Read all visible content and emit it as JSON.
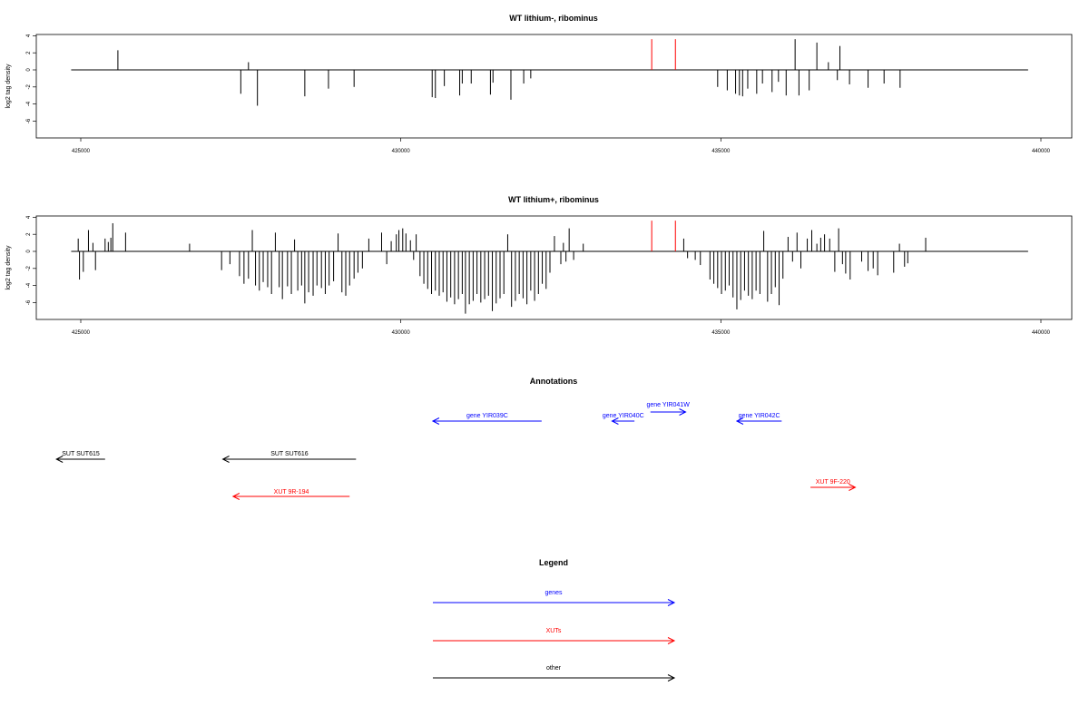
{
  "chart_data": [
    {
      "type": "bar",
      "title": "WT lithium-, ribominus",
      "ylabel": "log2 tag density",
      "xlabel": "",
      "xlim": [
        424800,
        440050
      ],
      "ylim": [
        -7.5,
        4
      ],
      "x_ticks": [
        425000,
        430000,
        435000,
        440000
      ],
      "y_ticks": [
        4,
        2,
        0,
        -2,
        -4,
        -6
      ],
      "grid": false,
      "highlight": {
        "color": "#ff0000",
        "x": [
          433920,
          434290
        ]
      },
      "values": [
        [
          425580,
          2.3
        ],
        [
          427500,
          -2.8
        ],
        [
          427620,
          0.9
        ],
        [
          427760,
          -4.2
        ],
        [
          428500,
          -3.1
        ],
        [
          428870,
          -2.2
        ],
        [
          429270,
          -2.0
        ],
        [
          430490,
          -3.2
        ],
        [
          430540,
          -3.3
        ],
        [
          430680,
          -1.9
        ],
        [
          430920,
          -3.0
        ],
        [
          430960,
          -1.6
        ],
        [
          431100,
          -1.6
        ],
        [
          431400,
          -2.9
        ],
        [
          431440,
          -1.5
        ],
        [
          431720,
          -3.5
        ],
        [
          431920,
          -1.6
        ],
        [
          432030,
          -1.0
        ],
        [
          434950,
          -2.0
        ],
        [
          435100,
          -2.4
        ],
        [
          435230,
          -2.8
        ],
        [
          435290,
          -3.0
        ],
        [
          435340,
          -3.1
        ],
        [
          435420,
          -2.2
        ],
        [
          435560,
          -2.8
        ],
        [
          435650,
          -1.6
        ],
        [
          435800,
          -2.6
        ],
        [
          435900,
          -1.4
        ],
        [
          436020,
          -3.0
        ],
        [
          436160,
          3.6
        ],
        [
          436220,
          -3.0
        ],
        [
          436380,
          -2.4
        ],
        [
          436500,
          3.2
        ],
        [
          436680,
          0.9
        ],
        [
          436820,
          -1.2
        ],
        [
          436860,
          2.8
        ],
        [
          437010,
          -1.7
        ],
        [
          437300,
          -2.1
        ],
        [
          437550,
          -1.6
        ],
        [
          437800,
          -2.1
        ]
      ]
    },
    {
      "type": "bar",
      "title": "WT lithium+, ribominus",
      "ylabel": "log2 tag density",
      "xlabel": "",
      "xlim": [
        424800,
        440050
      ],
      "ylim": [
        -7.5,
        4
      ],
      "x_ticks": [
        425000,
        430000,
        435000,
        440000
      ],
      "y_ticks": [
        4,
        2,
        0,
        -2,
        -4,
        -6
      ],
      "grid": false,
      "highlight": {
        "color": "#ff0000",
        "x": [
          433920,
          434290
        ]
      },
      "values": [
        [
          424960,
          1.5
        ],
        [
          424980,
          -3.3
        ],
        [
          425040,
          -2.4
        ],
        [
          425120,
          2.5
        ],
        [
          425190,
          1.0
        ],
        [
          425230,
          -2.2
        ],
        [
          425380,
          1.5
        ],
        [
          425430,
          1.1
        ],
        [
          425470,
          1.6
        ],
        [
          425500,
          3.3
        ],
        [
          425700,
          2.2
        ],
        [
          426700,
          0.9
        ],
        [
          427200,
          -2.2
        ],
        [
          427330,
          -1.5
        ],
        [
          427480,
          -2.9
        ],
        [
          427550,
          -3.8
        ],
        [
          427620,
          -3.2
        ],
        [
          427680,
          2.5
        ],
        [
          427730,
          -4.0
        ],
        [
          427790,
          -4.6
        ],
        [
          427850,
          -3.6
        ],
        [
          427920,
          -4.2
        ],
        [
          427980,
          -5.0
        ],
        [
          428040,
          2.2
        ],
        [
          428100,
          -4.2
        ],
        [
          428150,
          -5.6
        ],
        [
          428230,
          -4.1
        ],
        [
          428290,
          -5.0
        ],
        [
          428340,
          1.4
        ],
        [
          428390,
          -4.6
        ],
        [
          428450,
          -4.0
        ],
        [
          428500,
          -6.1
        ],
        [
          428560,
          -4.8
        ],
        [
          428630,
          -5.2
        ],
        [
          428690,
          -4.0
        ],
        [
          428760,
          -4.3
        ],
        [
          428820,
          -5.0
        ],
        [
          428880,
          -4.0
        ],
        [
          428950,
          -3.5
        ],
        [
          429020,
          2.1
        ],
        [
          429080,
          -4.8
        ],
        [
          429140,
          -5.2
        ],
        [
          429200,
          -4.0
        ],
        [
          429270,
          -3.2
        ],
        [
          429330,
          -2.5
        ],
        [
          429400,
          -2.0
        ],
        [
          429500,
          1.5
        ],
        [
          429700,
          2.2
        ],
        [
          429780,
          -1.5
        ],
        [
          429850,
          1.2
        ],
        [
          429930,
          2.0
        ],
        [
          429970,
          2.5
        ],
        [
          430030,
          2.7
        ],
        [
          430080,
          2.1
        ],
        [
          430150,
          1.3
        ],
        [
          430200,
          -1.0
        ],
        [
          430240,
          2.0
        ],
        [
          430300,
          -2.9
        ],
        [
          430360,
          -3.8
        ],
        [
          430420,
          -4.4
        ],
        [
          430480,
          -5.0
        ],
        [
          430540,
          -4.6
        ],
        [
          430600,
          -5.2
        ],
        [
          430660,
          -4.8
        ],
        [
          430720,
          -5.9
        ],
        [
          430780,
          -5.4
        ],
        [
          430840,
          -6.2
        ],
        [
          430900,
          -5.6
        ],
        [
          430960,
          -5.0
        ],
        [
          431010,
          -7.3
        ],
        [
          431070,
          -6.2
        ],
        [
          431130,
          -5.8
        ],
        [
          431190,
          -5.0
        ],
        [
          431250,
          -6.0
        ],
        [
          431310,
          -5.6
        ],
        [
          431370,
          -5.2
        ],
        [
          431430,
          -7.0
        ],
        [
          431490,
          -6.1
        ],
        [
          431550,
          -5.5
        ],
        [
          431610,
          -5.0
        ],
        [
          431670,
          2.0
        ],
        [
          431730,
          -6.5
        ],
        [
          431790,
          -5.8
        ],
        [
          431850,
          -5.0
        ],
        [
          431910,
          -5.5
        ],
        [
          431970,
          -6.2
        ],
        [
          432030,
          -4.6
        ],
        [
          432090,
          -5.8
        ],
        [
          432150,
          -5.0
        ],
        [
          432210,
          -3.8
        ],
        [
          432270,
          -4.4
        ],
        [
          432330,
          -2.5
        ],
        [
          432400,
          1.8
        ],
        [
          432500,
          -1.5
        ],
        [
          432540,
          1.0
        ],
        [
          432580,
          -1.2
        ],
        [
          432630,
          2.7
        ],
        [
          432700,
          -1.0
        ],
        [
          432850,
          0.9
        ],
        [
          434420,
          1.5
        ],
        [
          434480,
          -0.8
        ],
        [
          434600,
          -1.0
        ],
        [
          434680,
          -1.6
        ],
        [
          434830,
          -3.3
        ],
        [
          434890,
          -3.8
        ],
        [
          434950,
          -4.3
        ],
        [
          435010,
          -5.0
        ],
        [
          435070,
          -4.6
        ],
        [
          435130,
          -4.0
        ],
        [
          435190,
          -5.4
        ],
        [
          435250,
          -6.8
        ],
        [
          435310,
          -5.7
        ],
        [
          435370,
          -4.6
        ],
        [
          435430,
          -5.2
        ],
        [
          435490,
          -5.6
        ],
        [
          435550,
          -4.6
        ],
        [
          435610,
          -5.0
        ],
        [
          435670,
          2.4
        ],
        [
          435730,
          -5.9
        ],
        [
          435790,
          -5.0
        ],
        [
          435850,
          -4.2
        ],
        [
          435910,
          -6.3
        ],
        [
          435970,
          -3.2
        ],
        [
          436050,
          1.7
        ],
        [
          436120,
          -1.2
        ],
        [
          436190,
          2.2
        ],
        [
          436250,
          -2.0
        ],
        [
          436350,
          1.5
        ],
        [
          436420,
          2.5
        ],
        [
          436500,
          0.9
        ],
        [
          436560,
          1.6
        ],
        [
          436620,
          2.0
        ],
        [
          436700,
          1.5
        ],
        [
          436780,
          -2.4
        ],
        [
          436840,
          2.7
        ],
        [
          436900,
          -1.5
        ],
        [
          436950,
          -2.6
        ],
        [
          437020,
          -3.3
        ],
        [
          437200,
          -1.2
        ],
        [
          437300,
          -2.3
        ],
        [
          437380,
          -2.0
        ],
        [
          437450,
          -2.8
        ],
        [
          437700,
          -2.5
        ],
        [
          437790,
          0.9
        ],
        [
          437870,
          -1.8
        ],
        [
          437920,
          -1.4
        ],
        [
          438200,
          1.6
        ]
      ]
    }
  ],
  "annotations": {
    "title": "Annotations",
    "features": [
      {
        "label": "gene YIR039C",
        "type": "genes",
        "start": 432200,
        "end": 430500,
        "row": "gene-low"
      },
      {
        "label": "gene YIR040C",
        "type": "genes",
        "start": 433650,
        "end": 433300,
        "row": "gene-low"
      },
      {
        "label": "gene YIR041W",
        "type": "genes",
        "start": 433900,
        "end": 434450,
        "row": "gene-high"
      },
      {
        "label": "gene YIR042C",
        "type": "genes",
        "start": 435950,
        "end": 435250,
        "row": "gene-low"
      },
      {
        "label": "SUT SUT615",
        "type": "other",
        "start": 425380,
        "end": 424620,
        "row": "other"
      },
      {
        "label": "SUT SUT616",
        "type": "other",
        "start": 429300,
        "end": 427220,
        "row": "other"
      },
      {
        "label": "XUT 9R-194",
        "type": "XUTs",
        "start": 429200,
        "end": 427380,
        "row": "xut-low"
      },
      {
        "label": "XUT 9F-220",
        "type": "XUTs",
        "start": 436400,
        "end": 437100,
        "row": "xut-high"
      }
    ]
  },
  "legend": {
    "title": "Legend",
    "items": [
      {
        "label": "genes",
        "color": "#0000ff"
      },
      {
        "label": "XUTs",
        "color": "#ff0000"
      },
      {
        "label": "other",
        "color": "#000000"
      }
    ]
  },
  "colors": {
    "genes": "#0000ff",
    "XUTs": "#ff0000",
    "other": "#000000"
  }
}
